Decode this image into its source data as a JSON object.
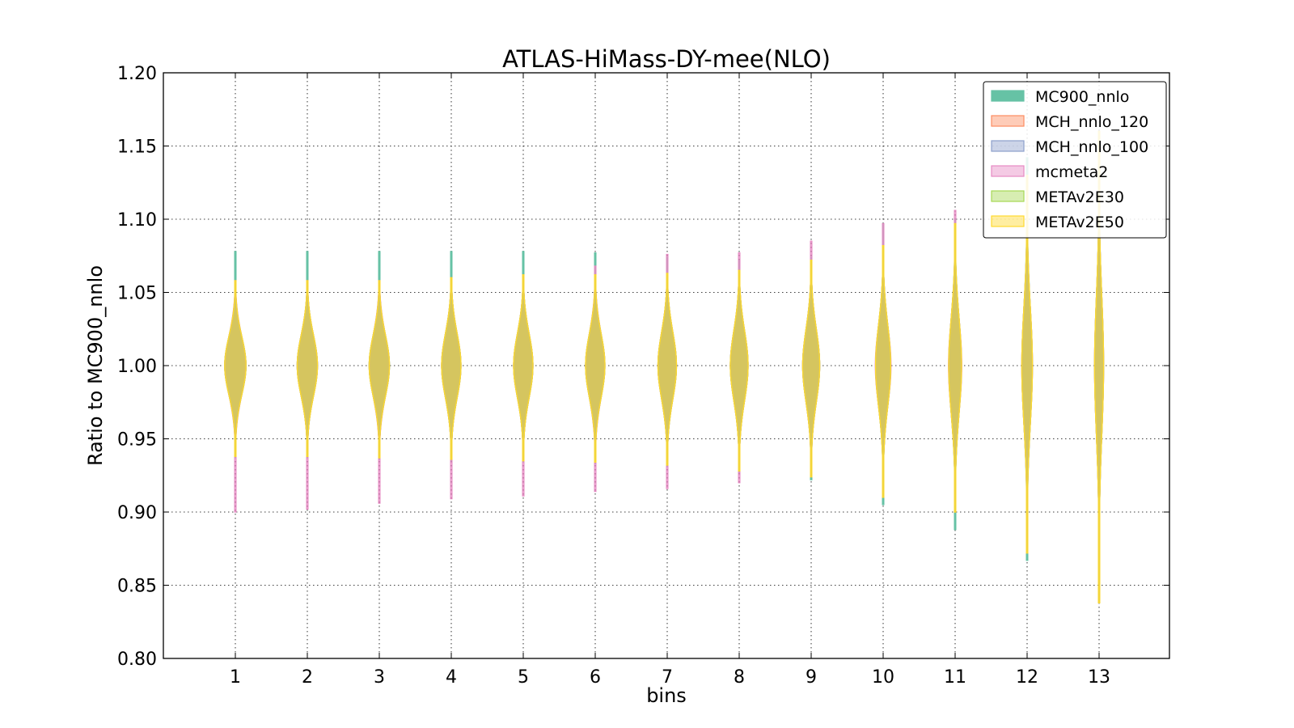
{
  "chart_data": {
    "type": "violin",
    "title": "ATLAS-HiMass-DY-mee(NLO)",
    "xlabel": "bins",
    "ylabel": "Ratio to MC900_nnlo",
    "ylim": [
      0.8,
      1.2
    ],
    "yticks": [
      "0.80",
      "0.85",
      "0.90",
      "0.95",
      "1.00",
      "1.05",
      "1.10",
      "1.15",
      "1.20"
    ],
    "categories": [
      "1",
      "2",
      "3",
      "4",
      "5",
      "6",
      "7",
      "8",
      "9",
      "10",
      "11",
      "12",
      "13"
    ],
    "grid": true,
    "legend_position": "top-right",
    "series": [
      {
        "name": "MC900_nnlo",
        "color": "#66c2a5",
        "filled": true,
        "center": [
          1,
          1,
          1,
          1,
          1,
          1,
          1,
          1,
          1,
          1,
          1,
          1,
          1
        ],
        "sigma": [
          0.02,
          0.021,
          0.021,
          0.022,
          0.022,
          0.022,
          0.023,
          0.024,
          0.025,
          0.028,
          0.034,
          0.042,
          0.048
        ],
        "min": [
          0.937,
          0.937,
          0.936,
          0.935,
          0.934,
          0.933,
          0.931,
          0.927,
          0.922,
          0.905,
          0.888,
          0.867,
          0.845
        ],
        "max": [
          1.078,
          1.078,
          1.078,
          1.078,
          1.078,
          1.077,
          1.074,
          1.072,
          1.074,
          1.097,
          1.1,
          1.142,
          1.15
        ]
      },
      {
        "name": "MCH_nnlo_120",
        "color": "#fc8d62",
        "filled": true,
        "center": [
          1,
          1,
          1,
          1,
          1,
          1,
          1,
          1,
          1,
          1,
          1,
          1,
          1
        ],
        "sigma": [
          0.02,
          0.021,
          0.021,
          0.022,
          0.022,
          0.022,
          0.023,
          0.024,
          0.025,
          0.028,
          0.033,
          0.04,
          0.047
        ],
        "min": [
          0.938,
          0.938,
          0.937,
          0.936,
          0.935,
          0.934,
          0.932,
          0.928,
          0.924,
          0.91,
          0.9,
          0.872,
          0.838
        ],
        "max": [
          1.058,
          1.058,
          1.058,
          1.06,
          1.062,
          1.062,
          1.063,
          1.065,
          1.072,
          1.082,
          1.097,
          1.13,
          1.16
        ]
      },
      {
        "name": "MCH_nnlo_100",
        "color": "#8da0cb",
        "filled": true,
        "center": [
          1,
          1,
          1,
          1,
          1,
          1,
          1,
          1,
          1,
          1,
          1,
          1,
          1
        ],
        "sigma": [
          0.02,
          0.021,
          0.021,
          0.022,
          0.022,
          0.022,
          0.023,
          0.024,
          0.025,
          0.028,
          0.033,
          0.04,
          0.047
        ],
        "min": [
          0.938,
          0.938,
          0.937,
          0.936,
          0.935,
          0.934,
          0.932,
          0.928,
          0.924,
          0.91,
          0.9,
          0.872,
          0.838
        ],
        "max": [
          1.058,
          1.058,
          1.058,
          1.06,
          1.062,
          1.062,
          1.063,
          1.065,
          1.072,
          1.082,
          1.097,
          1.13,
          1.16
        ]
      },
      {
        "name": "mcmeta2",
        "color": "#e78ac3",
        "filled": true,
        "center": [
          1,
          1,
          1,
          1,
          1,
          1,
          1,
          1,
          1,
          1,
          1,
          1,
          1
        ],
        "sigma": [
          0.021,
          0.021,
          0.022,
          0.022,
          0.022,
          0.023,
          0.023,
          0.024,
          0.025,
          0.027,
          0.032,
          0.04,
          0.047
        ],
        "min": [
          0.9,
          0.902,
          0.906,
          0.909,
          0.911,
          0.914,
          0.916,
          0.92,
          0.925,
          0.913,
          0.905,
          0.872,
          0.838
        ],
        "max": [
          1.058,
          1.058,
          1.058,
          1.06,
          1.062,
          1.068,
          1.076,
          1.077,
          1.085,
          1.097,
          1.106,
          1.13,
          1.16
        ]
      },
      {
        "name": "METAv2E30",
        "color": "#a6d854",
        "filled": true,
        "center": [
          1,
          1,
          1,
          1,
          1,
          1,
          1,
          1,
          1,
          1,
          1,
          1,
          1
        ],
        "sigma": [
          0.02,
          0.021,
          0.021,
          0.022,
          0.022,
          0.022,
          0.023,
          0.024,
          0.025,
          0.028,
          0.033,
          0.04,
          0.047
        ],
        "min": [
          0.938,
          0.938,
          0.937,
          0.936,
          0.935,
          0.934,
          0.932,
          0.928,
          0.924,
          0.91,
          0.9,
          0.872,
          0.838
        ],
        "max": [
          1.058,
          1.058,
          1.058,
          1.06,
          1.062,
          1.062,
          1.063,
          1.065,
          1.072,
          1.082,
          1.097,
          1.13,
          1.16
        ]
      },
      {
        "name": "METAv2E50",
        "color": "#ffd92f",
        "filled": true,
        "center": [
          1,
          1,
          1,
          1,
          1,
          1,
          1,
          1,
          1,
          1,
          1,
          1,
          1
        ],
        "sigma": [
          0.02,
          0.021,
          0.021,
          0.022,
          0.022,
          0.022,
          0.023,
          0.024,
          0.025,
          0.028,
          0.033,
          0.04,
          0.047
        ],
        "min": [
          0.938,
          0.938,
          0.937,
          0.936,
          0.935,
          0.934,
          0.932,
          0.928,
          0.924,
          0.91,
          0.9,
          0.872,
          0.838
        ],
        "max": [
          1.058,
          1.058,
          1.058,
          1.06,
          1.062,
          1.062,
          1.063,
          1.065,
          1.072,
          1.082,
          1.097,
          1.13,
          1.16
        ]
      }
    ]
  }
}
